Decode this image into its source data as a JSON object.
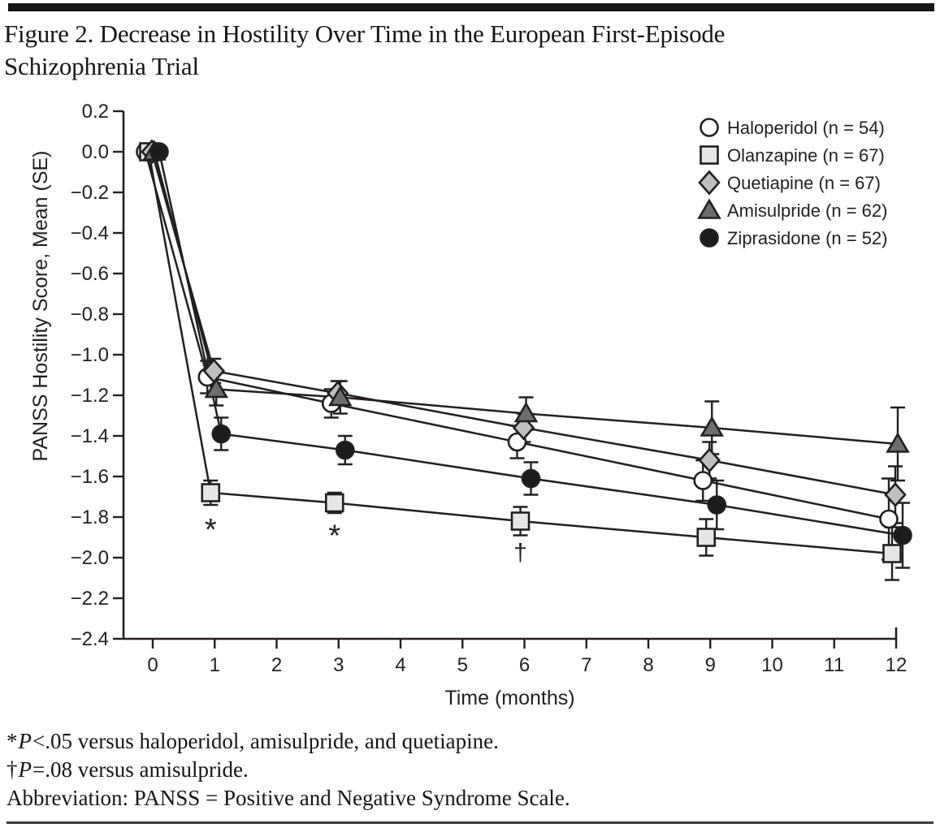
{
  "header": {
    "title_lines": [
      "Figure 2. Decrease in Hostility Over Time in the European First-Episode",
      "Schizophrenia Trial"
    ]
  },
  "chart_data": {
    "type": "line",
    "title": "",
    "xlabel": "Time (months)",
    "ylabel": "PANSS Hostility Score, Mean (SE)",
    "x_months": [
      0,
      1,
      3,
      6,
      9,
      12
    ],
    "xlim": [
      0,
      12
    ],
    "ylim": [
      -2.4,
      0.2
    ],
    "x_tick_labels": [
      "0",
      "1",
      "2",
      "3",
      "4",
      "5",
      "6",
      "7",
      "8",
      "9",
      "10",
      "11",
      "12"
    ],
    "y_tick_labels": [
      "0.2",
      "0.0",
      "−0.2",
      "−0.4",
      "−0.6",
      "−0.8",
      "−1.0",
      "−1.2",
      "−1.4",
      "−1.6",
      "−1.8",
      "−2.0",
      "−2.2",
      "−2.4"
    ],
    "grid": false,
    "legend_position": "top-right",
    "line_color": "#231f20",
    "series": [
      {
        "name": "Haloperidol (n = 54)",
        "marker": "circle-open",
        "fill": "#ffffff",
        "x_offset": -9,
        "values": [
          0,
          -1.11,
          -1.24,
          -1.43,
          -1.62,
          -1.81
        ],
        "se": [
          0,
          0.08,
          0.07,
          0.08,
          0.1,
          0.2
        ]
      },
      {
        "name": "Olanzapine (n = 67)",
        "marker": "square",
        "fill": "#e6e6e6",
        "x_offset": -5,
        "values": [
          0,
          -1.68,
          -1.73,
          -1.82,
          -1.9,
          -1.98
        ],
        "se": [
          0,
          0.06,
          0.05,
          0.07,
          0.09,
          0.13
        ]
      },
      {
        "name": "Quetiapine (n = 67)",
        "marker": "diamond",
        "fill": "#bfbfbf",
        "x_offset": -1,
        "values": [
          0,
          -1.08,
          -1.19,
          -1.36,
          -1.52,
          -1.69
        ],
        "se": [
          0,
          0.06,
          0.06,
          0.07,
          0.09,
          0.14
        ]
      },
      {
        "name": "Amisulpride (n = 62)",
        "marker": "triangle",
        "fill": "#6d6d6d",
        "x_offset": 2,
        "values": [
          0,
          -1.17,
          -1.21,
          -1.29,
          -1.36,
          -1.44
        ],
        "se": [
          0,
          0.08,
          0.08,
          0.08,
          0.13,
          0.18
        ]
      },
      {
        "name": "Ziprasidone (n = 52)",
        "marker": "circle-filled",
        "fill": "#1c1c1c",
        "x_offset": 8,
        "values": [
          0,
          -1.39,
          -1.47,
          -1.61,
          -1.74,
          -1.89
        ],
        "se": [
          0,
          0.08,
          0.07,
          0.08,
          0.12,
          0.16
        ]
      }
    ],
    "annotations": [
      {
        "symbol": "*",
        "month": 1,
        "value": -1.84
      },
      {
        "symbol": "*",
        "month": 3,
        "value": -1.87
      },
      {
        "symbol": "†",
        "month": 6,
        "value": -1.97
      }
    ]
  },
  "footnotes": [
    {
      "sym": "*",
      "p": "P",
      "rest": "<.05 versus haloperidol, amisulpride, and quetiapine."
    },
    {
      "sym": "†",
      "p": "P",
      "rest": "=.08 versus amisulpride."
    },
    {
      "sym": "",
      "p": "",
      "rest": "Abbreviation: PANSS = Positive and Negative Syndrome Scale."
    }
  ]
}
